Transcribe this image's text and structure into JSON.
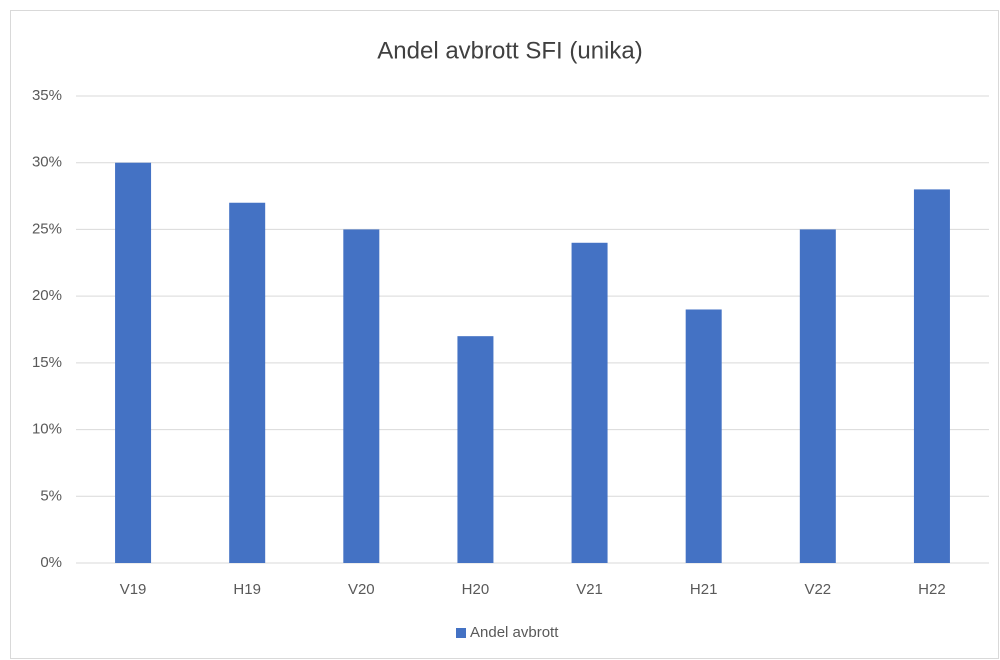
{
  "chart_data": {
    "type": "bar",
    "title": "Andel avbrott SFI (unika)",
    "categories": [
      "V19",
      "H19",
      "V20",
      "H20",
      "V21",
      "H21",
      "V22",
      "H22"
    ],
    "series": [
      {
        "name": "Andel avbrott",
        "color": "#4472c4",
        "values": [
          30,
          27,
          25,
          17,
          24,
          19,
          25,
          28
        ]
      }
    ],
    "ylim": [
      0,
      35
    ],
    "yticks": [
      {
        "value": 0,
        "label": "0%"
      },
      {
        "value": 5,
        "label": "5%"
      },
      {
        "value": 10,
        "label": "10%"
      },
      {
        "value": 15,
        "label": "15%"
      },
      {
        "value": 20,
        "label": "20%"
      },
      {
        "value": 25,
        "label": "25%"
      },
      {
        "value": 30,
        "label": "30%"
      },
      {
        "value": 35,
        "label": "35%"
      }
    ],
    "grid": true,
    "legend": "bottom"
  }
}
